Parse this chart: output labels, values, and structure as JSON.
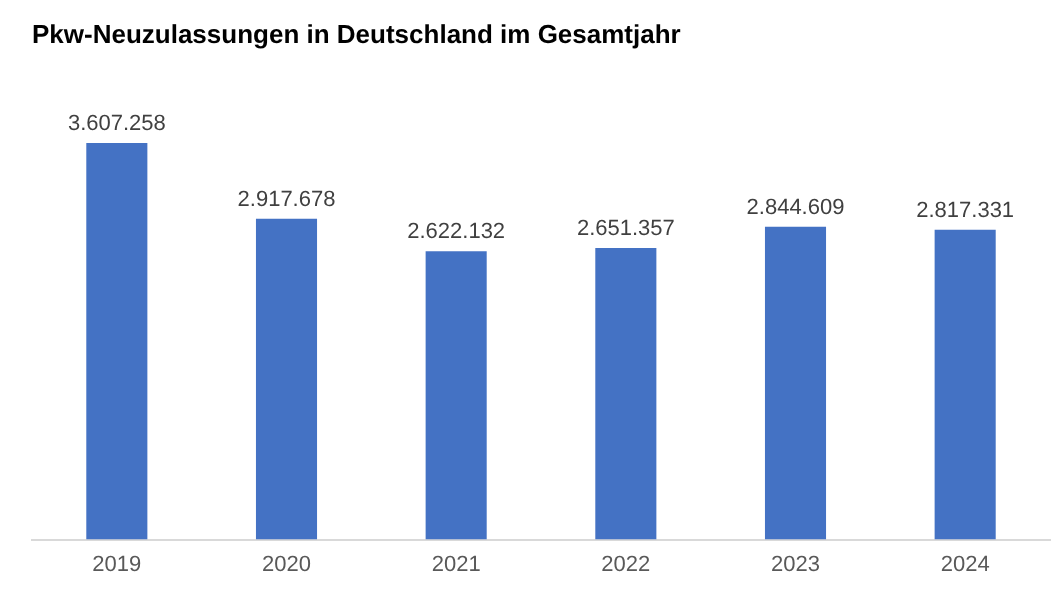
{
  "chart_data": {
    "type": "bar",
    "title": "Pkw-Neuzulassungen in Deutschland im Gesamtjahr",
    "categories": [
      "2019",
      "2020",
      "2021",
      "2022",
      "2023",
      "2024"
    ],
    "values": [
      3607258,
      2917678,
      2622132,
      2651357,
      2844609,
      2817331
    ],
    "value_labels": [
      "3.607.258",
      "2.917.678",
      "2.622.132",
      "2.651.357",
      "2.844.609",
      "2.817.331"
    ],
    "color": "#4472c4",
    "grid": false,
    "legend": false
  }
}
